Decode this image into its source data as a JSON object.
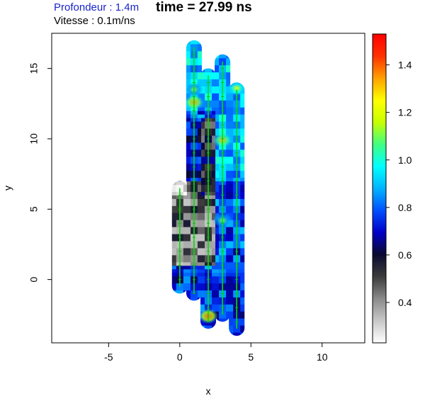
{
  "header": {
    "depth_label": "Profondeur : 1.4m",
    "time_label": "time = 27.99 ns",
    "speed_label": "Vitesse : 0.1m/ns"
  },
  "chart_data": {
    "type": "heatmap",
    "title": "time = 27.99 ns",
    "xlabel": "x",
    "ylabel": "y",
    "xlim": [
      -9,
      13
    ],
    "ylim": [
      -4.5,
      17.5
    ],
    "xticks": [
      -5,
      0,
      5,
      10
    ],
    "yticks": [
      0,
      5,
      10,
      15
    ],
    "grid": false,
    "profiles": [
      {
        "x": 0,
        "y_start": -0.5,
        "y_end": 6.5
      },
      {
        "x": 1,
        "y_start": -1,
        "y_end": 16.5
      },
      {
        "x": 2,
        "y_start": -3,
        "y_end": 14.5
      },
      {
        "x": 3,
        "y_start": -2.5,
        "y_end": 15.5
      },
      {
        "x": 4,
        "y_start": -3.5,
        "y_end": 13.5
      }
    ],
    "hotspots": [
      {
        "x": 1,
        "y": 12.6,
        "value": 1.35
      },
      {
        "x": 3,
        "y": 9.9,
        "value": 1.3
      },
      {
        "x": 2,
        "y": -2.6,
        "value": 1.4
      },
      {
        "x": 4,
        "y": 13.6,
        "value": 1.2
      },
      {
        "x": 1,
        "y": 13.5,
        "value": 1.1
      },
      {
        "x": 3,
        "y": 4.2,
        "value": 1.1
      }
    ],
    "colorbar": {
      "min": 0.23,
      "max": 1.53,
      "ticks": [
        0.4,
        0.6,
        0.8,
        1.0,
        1.2,
        1.4
      ],
      "tick_labels": [
        "0.4",
        "0.6",
        "0.8",
        "1.0",
        "1.2",
        "1.4"
      ],
      "colors": [
        "#ffffff",
        "#c8c8c8",
        "#8a8a8a",
        "#3c3c3c",
        "#0a0a30",
        "#0000c8",
        "#0050ff",
        "#00b4ff",
        "#00ffff",
        "#40ff80",
        "#c8ff00",
        "#ffff00",
        "#ffa000",
        "#ff3000",
        "#ff0000"
      ]
    }
  }
}
